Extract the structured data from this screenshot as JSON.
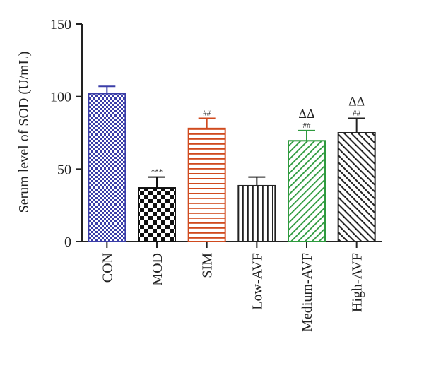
{
  "chart_data": {
    "type": "bar",
    "title": "",
    "xlabel": "",
    "ylabel": "Serum level of SOD (U/mL)",
    "ylim": [
      0,
      150
    ],
    "yticks": [
      0,
      50,
      100,
      150
    ],
    "grid": false,
    "categories": [
      "CON",
      "MOD",
      "SIM",
      "Low-AVF",
      "Medium-AVF",
      "High-AVF"
    ],
    "values": [
      102,
      37,
      78,
      38.5,
      69.5,
      75
    ],
    "error": [
      5,
      7.5,
      7,
      6,
      7,
      10
    ],
    "colors": [
      "#3b3ea8",
      "#111111",
      "#d04a1e",
      "#222222",
      "#2e9a3e",
      "#222222"
    ],
    "patterns": [
      "fine-checker",
      "checker",
      "horizontal-stripes",
      "vertical-stripes",
      "diagonal-stripes",
      "diagonal-stripes"
    ],
    "annotations": [
      {
        "category": "MOD",
        "lines": [
          "***"
        ]
      },
      {
        "category": "SIM",
        "lines": [
          "##"
        ]
      },
      {
        "category": "Medium-AVF",
        "lines": [
          "ΔΔ",
          "##"
        ]
      },
      {
        "category": "High-AVF",
        "lines": [
          "ΔΔ",
          "##"
        ]
      }
    ]
  }
}
